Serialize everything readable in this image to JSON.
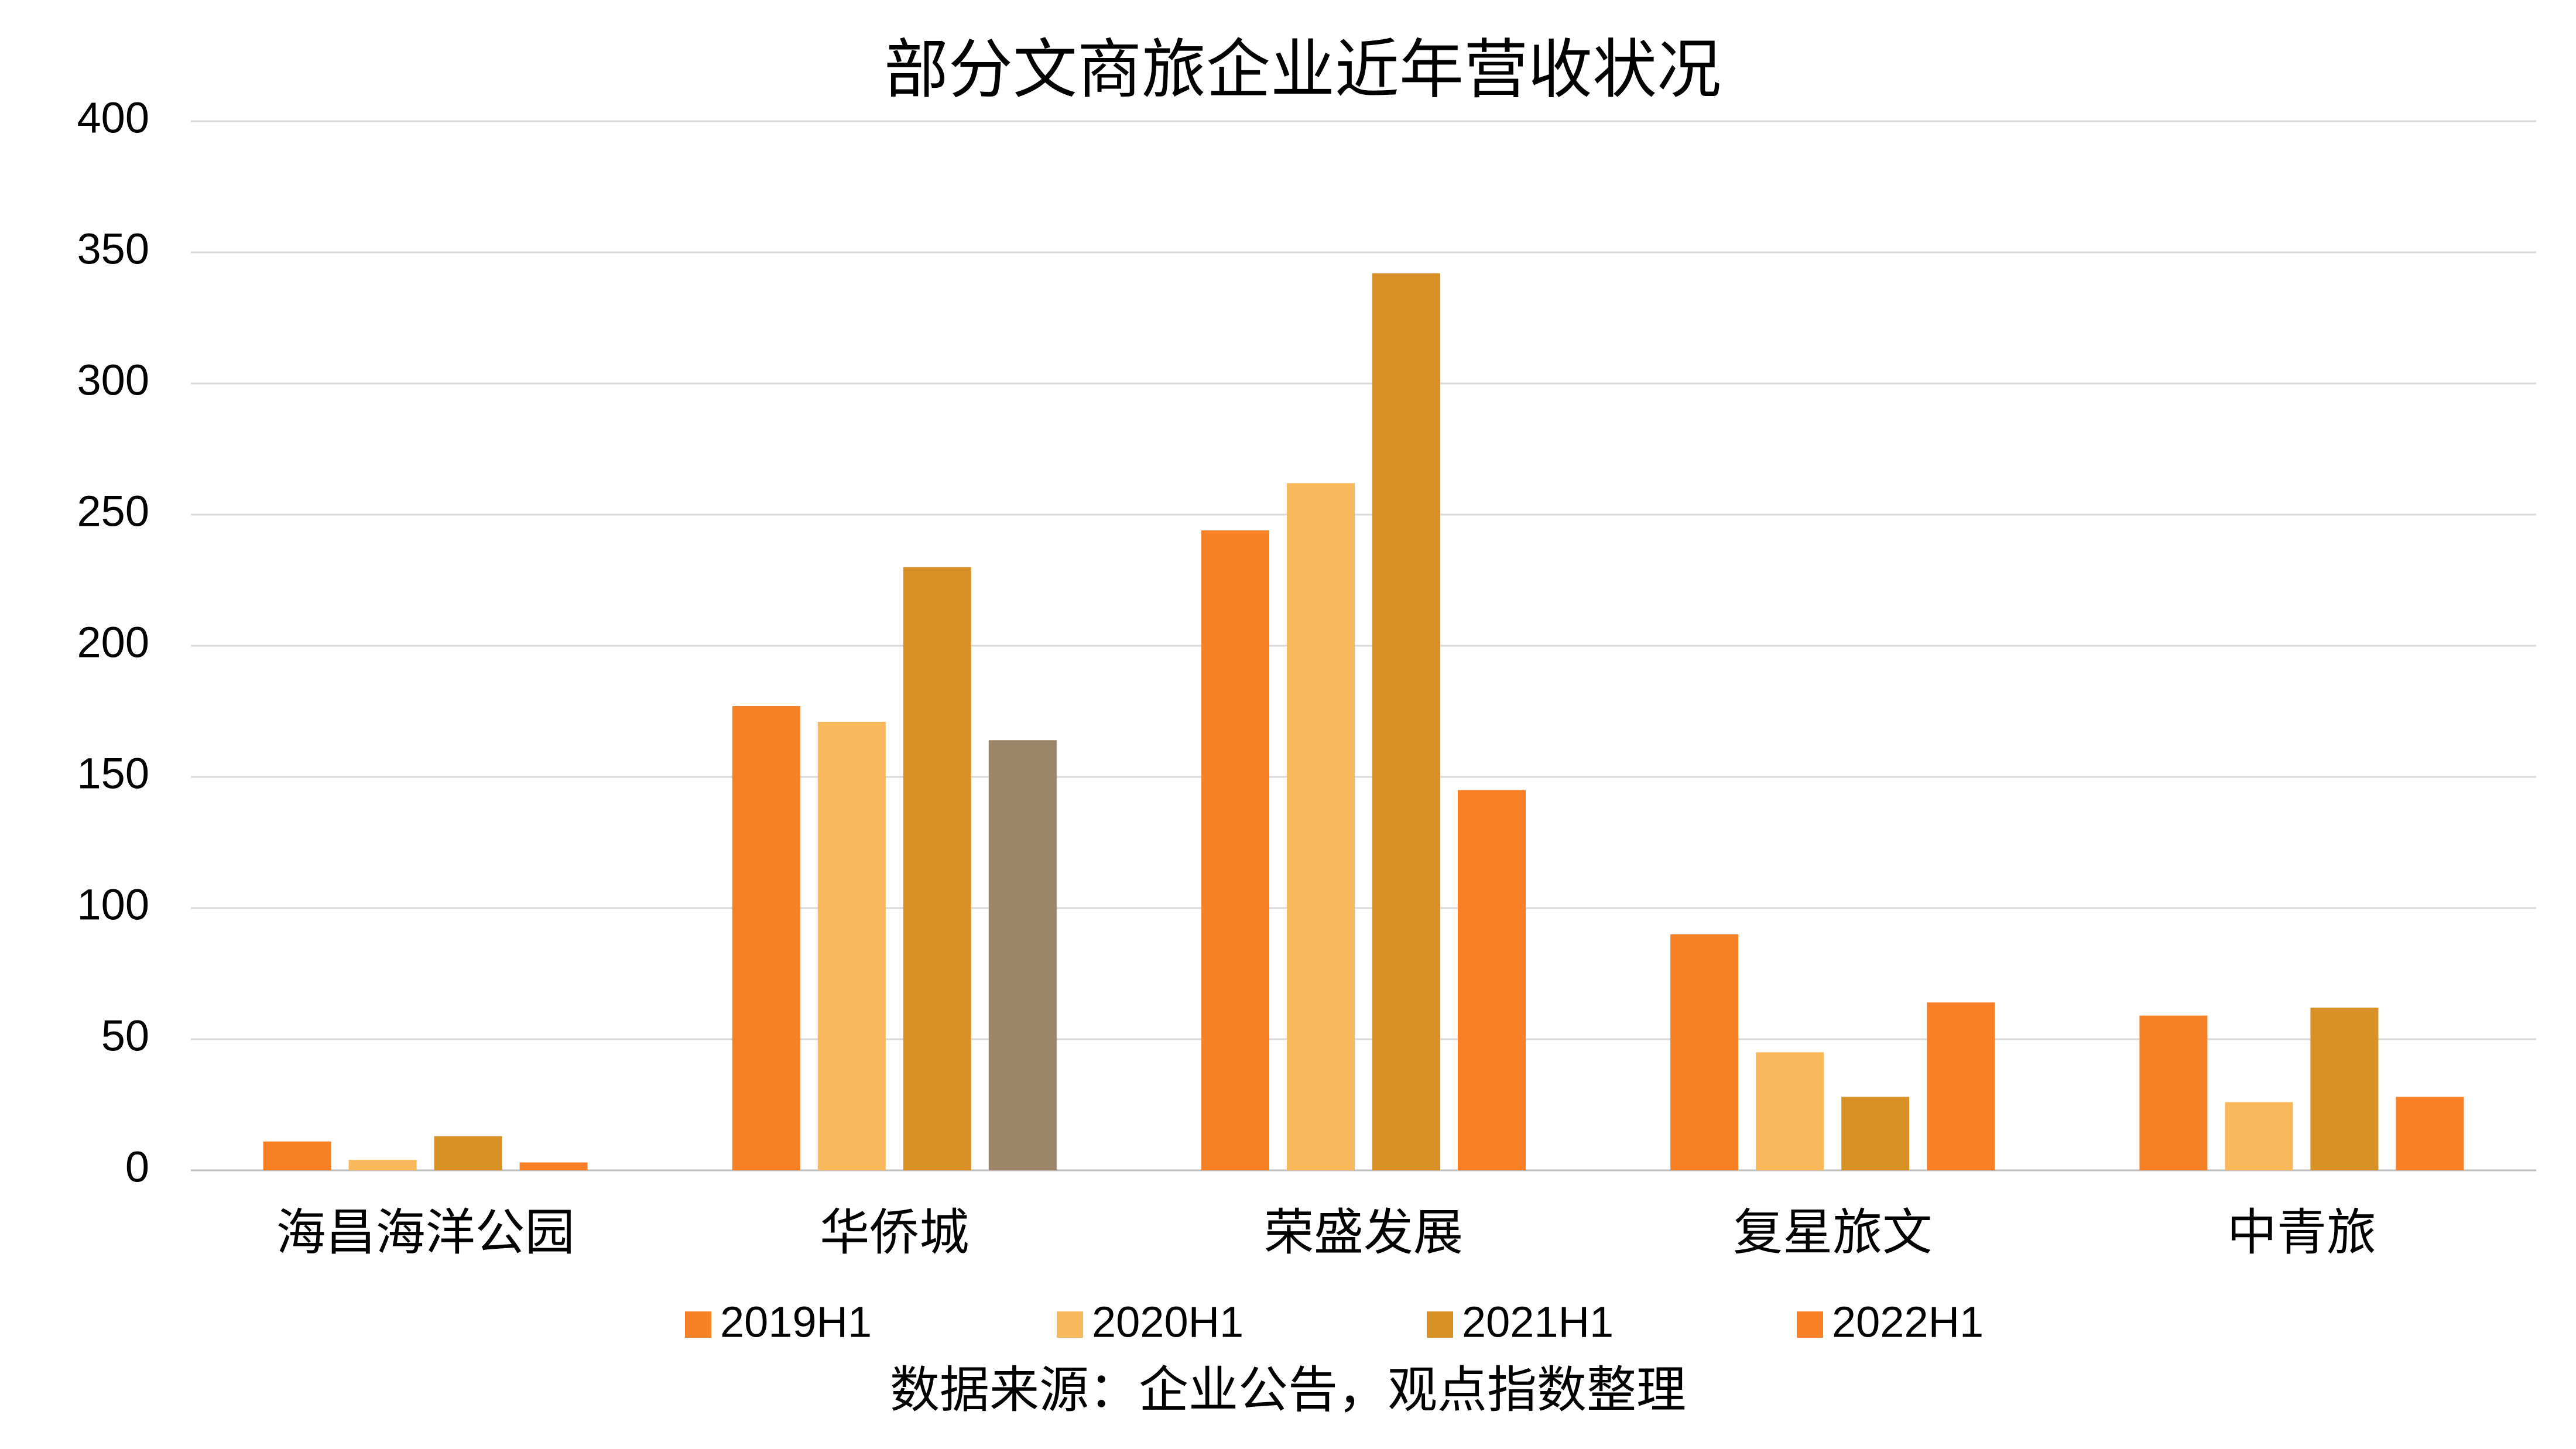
{
  "chart_data": {
    "type": "bar",
    "title": "部分文商旅企业近年营收状况",
    "categories": [
      "海昌海洋公园",
      "华侨城",
      "荣盛发展",
      "复星旅文",
      "中青旅"
    ],
    "series": [
      {
        "name": "2019H1",
        "color": "#f58025",
        "values": [
          11,
          177,
          244,
          90,
          59
        ]
      },
      {
        "name": "2020H1",
        "color": "#f9b85c",
        "values": [
          4,
          171,
          262,
          45,
          26
        ]
      },
      {
        "name": "2021H1",
        "color": "#d99026",
        "values": [
          13,
          230,
          342,
          28,
          62
        ]
      },
      {
        "name": "2022H1",
        "color": "#f98027",
        "colors": [
          "#f98027",
          "#9c8469",
          "#f98027",
          "#f98027",
          "#f98027"
        ],
        "values": [
          3,
          164,
          145,
          64,
          28
        ]
      }
    ],
    "ylim": [
      0,
      400
    ],
    "yticks": [
      0,
      50,
      100,
      150,
      200,
      250,
      300,
      350,
      400
    ],
    "grid": true,
    "legend": "bottom",
    "source": "数据来源：企业公告，观点指数整理"
  }
}
